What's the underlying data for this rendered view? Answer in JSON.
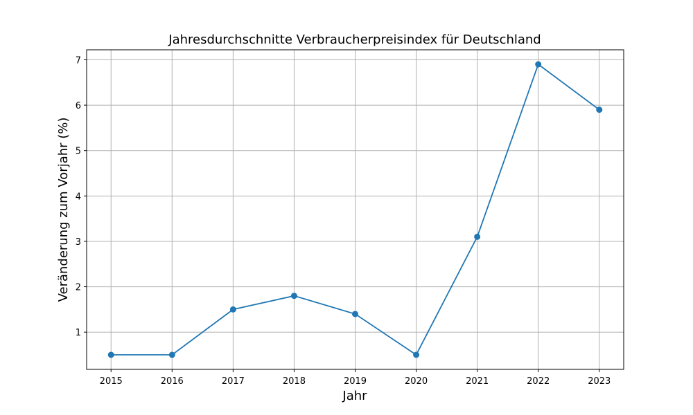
{
  "chart_data": {
    "type": "line",
    "title": "Jahresdurchschnitte Verbraucherpreisindex für Deutschland",
    "xlabel": "Jahr",
    "ylabel": "Veränderung zum Vorjahr (%)",
    "x": [
      2015,
      2016,
      2017,
      2018,
      2019,
      2020,
      2021,
      2022,
      2023
    ],
    "series": [
      {
        "values": [
          0.5,
          0.5,
          1.5,
          1.8,
          1.4,
          0.5,
          3.1,
          6.9,
          5.9
        ]
      }
    ],
    "x_ticks": [
      "2015",
      "2016",
      "2017",
      "2018",
      "2019",
      "2020",
      "2021",
      "2022",
      "2023"
    ],
    "y_ticks": [
      "1",
      "2",
      "3",
      "4",
      "5",
      "6",
      "7"
    ],
    "xlim": [
      2014.6,
      2023.4
    ],
    "ylim": [
      0.18,
      7.22
    ],
    "grid": true,
    "marker": "circle",
    "color": "#1f77b4"
  }
}
